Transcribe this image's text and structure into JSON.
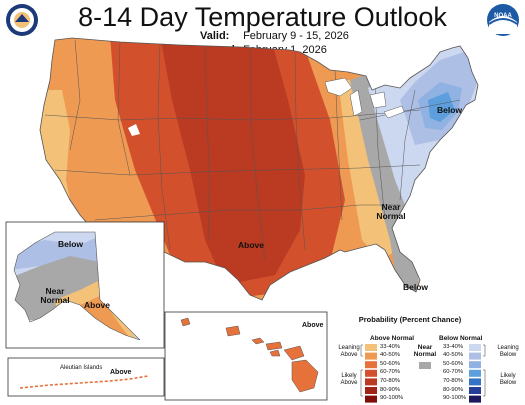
{
  "header": {
    "title": "8-14 Day Temperature Outlook",
    "valid_label": "Valid:",
    "valid_value": "February 9 - 15, 2026",
    "issued_label": "Issued:",
    "issued_value": "February 1, 2026"
  },
  "logos": {
    "left": "commerce-seal-icon",
    "right": "noaa-logo-icon",
    "noaa_text": "NOAA"
  },
  "regions": {
    "conus_above": "Above",
    "conus_below": "Below",
    "conus_near": "Near Normal",
    "conus_below_se": "Below",
    "alaska_below": "Below",
    "alaska_near": "Near Normal",
    "alaska_above": "Above",
    "hawaii_above": "Above",
    "aleutian_label": "Aleutian Islands",
    "aleutian_above": "Above"
  },
  "legend": {
    "title": "Probability (Percent Chance)",
    "above_header": "Above Normal",
    "below_header": "Below Normal",
    "near_header": "Near Normal",
    "leaning_above": "Leaning Above",
    "likely_above": "Likely Above",
    "leaning_below": "Leaning Below",
    "likely_below": "Likely Below",
    "ranges": [
      "33-40%",
      "40-50%",
      "50-60%",
      "60-70%",
      "70-80%",
      "80-90%",
      "90-100%"
    ],
    "above_colors": [
      "#f3c278",
      "#ee9a53",
      "#e6713a",
      "#d3502c",
      "#bb3a22",
      "#a02415",
      "#7f0e0a"
    ],
    "below_colors": [
      "#ccd8ef",
      "#aebfe5",
      "#8fb2e3",
      "#5d9edc",
      "#3673c7",
      "#273e98",
      "#1c1a5c"
    ],
    "near_color": "#a8a8a8"
  }
}
